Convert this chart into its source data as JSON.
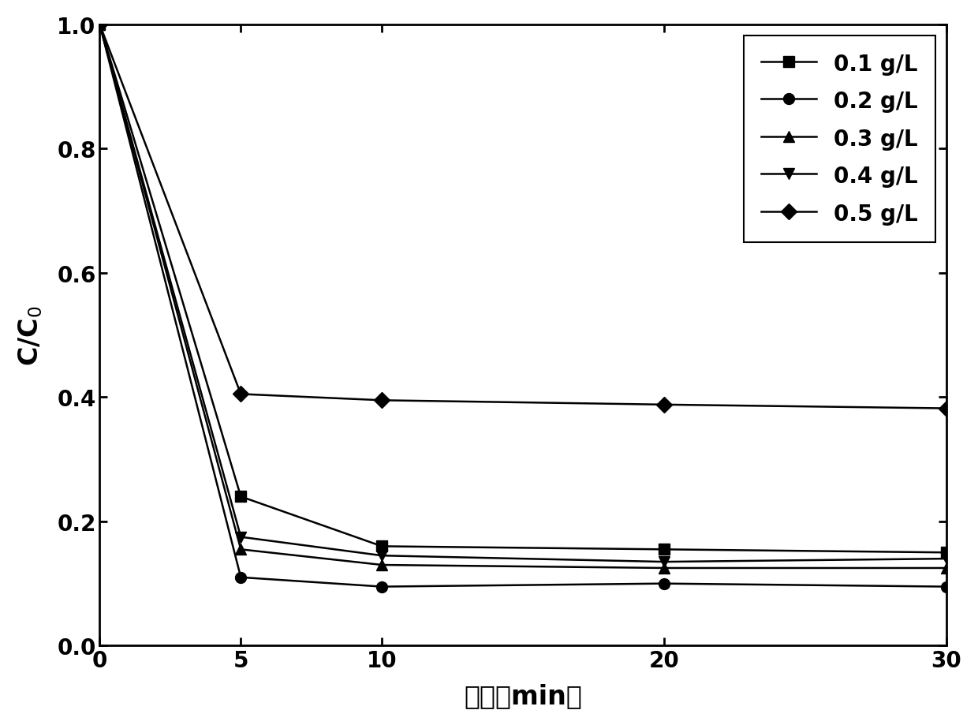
{
  "x": [
    0,
    5,
    10,
    20,
    30
  ],
  "series": [
    {
      "label": "0.1 g/L",
      "y": [
        1.0,
        0.24,
        0.16,
        0.155,
        0.15
      ],
      "marker": "s",
      "color": "#000000"
    },
    {
      "label": "0.2 g/L",
      "y": [
        1.0,
        0.11,
        0.095,
        0.1,
        0.095
      ],
      "marker": "o",
      "color": "#000000"
    },
    {
      "label": "0.3 g/L",
      "y": [
        1.0,
        0.155,
        0.13,
        0.125,
        0.125
      ],
      "marker": "^",
      "color": "#000000"
    },
    {
      "label": "0.4 g/L",
      "y": [
        1.0,
        0.175,
        0.145,
        0.135,
        0.14
      ],
      "marker": "v",
      "color": "#000000"
    },
    {
      "label": "0.5 g/L",
      "y": [
        1.0,
        0.405,
        0.395,
        0.388,
        0.382
      ],
      "marker": "D",
      "color": "#000000"
    }
  ],
  "xlabel": "时间（min）",
  "ylabel": "C/C$_0$",
  "xlim": [
    0,
    30
  ],
  "ylim": [
    0.0,
    1.0
  ],
  "xticks": [
    0,
    5,
    10,
    20,
    30
  ],
  "yticks": [
    0.0,
    0.2,
    0.4,
    0.6,
    0.8,
    1.0
  ],
  "legend_loc": "upper right",
  "marker_size": 10,
  "line_width": 1.8,
  "figure_bg": "#ffffff",
  "axes_bg": "#ffffff",
  "font_size_ticks": 20,
  "font_size_label": 24,
  "font_size_legend": 20
}
